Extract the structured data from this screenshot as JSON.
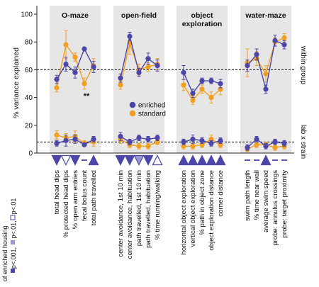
{
  "chart_data": {
    "type": "line",
    "ylabel": "% variance explained",
    "ylim": [
      0,
      100
    ],
    "yticks": [
      0,
      20,
      40,
      60,
      80,
      100
    ],
    "reference_lines": [
      60,
      8
    ],
    "band_labels": [
      "within group",
      "lab x strain"
    ],
    "legend": {
      "placement": "center",
      "entries": [
        "enriched",
        "standard"
      ]
    },
    "colors": {
      "enriched": "#4b46a8",
      "standard": "#f0a020",
      "marker_light": "#9a98d0",
      "panel_bg": "#e6e6e6"
    },
    "effect_legend": {
      "title": "effect of enriched housing",
      "items": [
        "p<.001,",
        "p<.01,",
        "p<.01"
      ],
      "levels": [
        "p001",
        "p01",
        "p01o"
      ]
    },
    "annotations": [
      {
        "panel": 0,
        "index": 3,
        "text": "**"
      }
    ],
    "panels": [
      {
        "title": "O-maze",
        "categories": [
          "total head dips",
          "% protected head dips",
          "% open arm entries",
          "fecal bolus count",
          "total path travelled"
        ],
        "within": {
          "enriched": {
            "values": [
              53,
              64,
              58,
              75,
              62
            ],
            "err": [
              3,
              5,
              4,
              1,
              4
            ]
          },
          "standard": {
            "values": [
              47,
              78,
              69,
              50,
              63
            ],
            "err": [
              3,
              10,
              3,
              4,
              5
            ]
          }
        },
        "labstrain": {
          "enriched": {
            "values": [
              7,
              9,
              10,
              6,
              10
            ],
            "err": [
              2,
              4,
              3,
              1,
              2
            ]
          },
          "standard": {
            "values": [
              13,
              11,
              12,
              7,
              8
            ],
            "err": [
              3,
              3,
              4,
              2,
              3
            ]
          }
        },
        "effects": [
          {
            "shape": "down",
            "level": "p001"
          },
          {
            "shape": "down",
            "level": "p01o"
          },
          {
            "shape": "down",
            "level": "p001"
          },
          {
            "shape": "dash",
            "level": "p001"
          },
          {
            "shape": "up",
            "level": "p001"
          }
        ]
      },
      {
        "title": "open-field",
        "categories": [
          "center avoidance, 1st 10 min",
          "center avoidance, habituation",
          "path travelled, 1st 10 min",
          "path travelled, habituation",
          "% time running/walking"
        ],
        "within": {
          "enriched": {
            "values": [
              54,
              84,
              58,
              68,
              63
            ],
            "err": [
              3,
              3,
              3,
              4,
              4
            ]
          },
          "standard": {
            "values": [
              49,
              79,
              60,
              62,
              64
            ],
            "err": [
              3,
              8,
              4,
              3,
              4
            ]
          }
        },
        "labstrain": {
          "enriched": {
            "values": [
              12,
              8,
              11,
              10,
              11
            ],
            "err": [
              3,
              2,
              2,
              2,
              2
            ]
          },
          "standard": {
            "values": [
              10,
              6,
              5,
              5,
              8
            ],
            "err": [
              3,
              2,
              2,
              2,
              2
            ]
          }
        },
        "effects": [
          {
            "shape": "down",
            "level": "p001"
          },
          {
            "shape": "down",
            "level": "p001"
          },
          {
            "shape": "down",
            "level": "p01"
          },
          {
            "shape": "down",
            "level": "p001"
          },
          {
            "shape": "up",
            "level": "p01o"
          }
        ]
      },
      {
        "title": "object exploration",
        "categories": [
          "horizontal object exploration",
          "vertical object exploration",
          "% path in object zone",
          "object exploration distance",
          "corner distance"
        ],
        "within": {
          "enriched": {
            "values": [
              58,
              43,
              52,
              52,
              50
            ],
            "err": [
              5,
              3,
              2,
              2,
              3
            ]
          },
          "standard": {
            "values": [
              49,
              38,
              46,
              40,
              46
            ],
            "err": [
              4,
              3,
              3,
              4,
              4
            ]
          }
        },
        "labstrain": {
          "enriched": {
            "values": [
              8,
              10,
              9,
              7,
              9
            ],
            "err": [
              2,
              3,
              2,
              2,
              2
            ]
          },
          "standard": {
            "values": [
              5,
              5,
              6,
              10,
              6
            ],
            "err": [
              2,
              2,
              2,
              3,
              2
            ]
          }
        },
        "effects": [
          {
            "shape": "up",
            "level": "p001"
          },
          {
            "shape": "up",
            "level": "p001"
          },
          {
            "shape": "up",
            "level": "p001"
          },
          {
            "shape": "up",
            "level": "p001"
          },
          {
            "shape": "up",
            "level": "p001"
          }
        ]
      },
      {
        "title": "water-maze",
        "categories": [
          "swim path length",
          "% time near wall",
          "average swim speed",
          "probe: annulus crossings",
          "probe: target proximity"
        ],
        "within": {
          "enriched": {
            "values": [
              63,
              71,
              46,
              81,
              78
            ],
            "err": [
              4,
              4,
              3,
              4,
              3
            ]
          },
          "standard": {
            "values": [
              65,
              68,
              57,
              80,
              83
            ],
            "err": [
              10,
              5,
              6,
              3,
              3
            ]
          }
        },
        "labstrain": {
          "enriched": {
            "values": [
              4,
              10,
              5,
              8,
              7
            ],
            "err": [
              2,
              2,
              2,
              2,
              2
            ]
          },
          "standard": {
            "values": [
              3,
              6,
              6,
              4,
              5
            ],
            "err": [
              2,
              2,
              2,
              2,
              2
            ]
          }
        },
        "effects": [
          {
            "shape": "dash",
            "level": "p001"
          },
          {
            "shape": "dash",
            "level": "p001"
          },
          {
            "shape": "up",
            "level": "p001"
          },
          {
            "shape": "dash",
            "level": "p001"
          },
          {
            "shape": "dash",
            "level": "p001"
          }
        ]
      }
    ]
  }
}
